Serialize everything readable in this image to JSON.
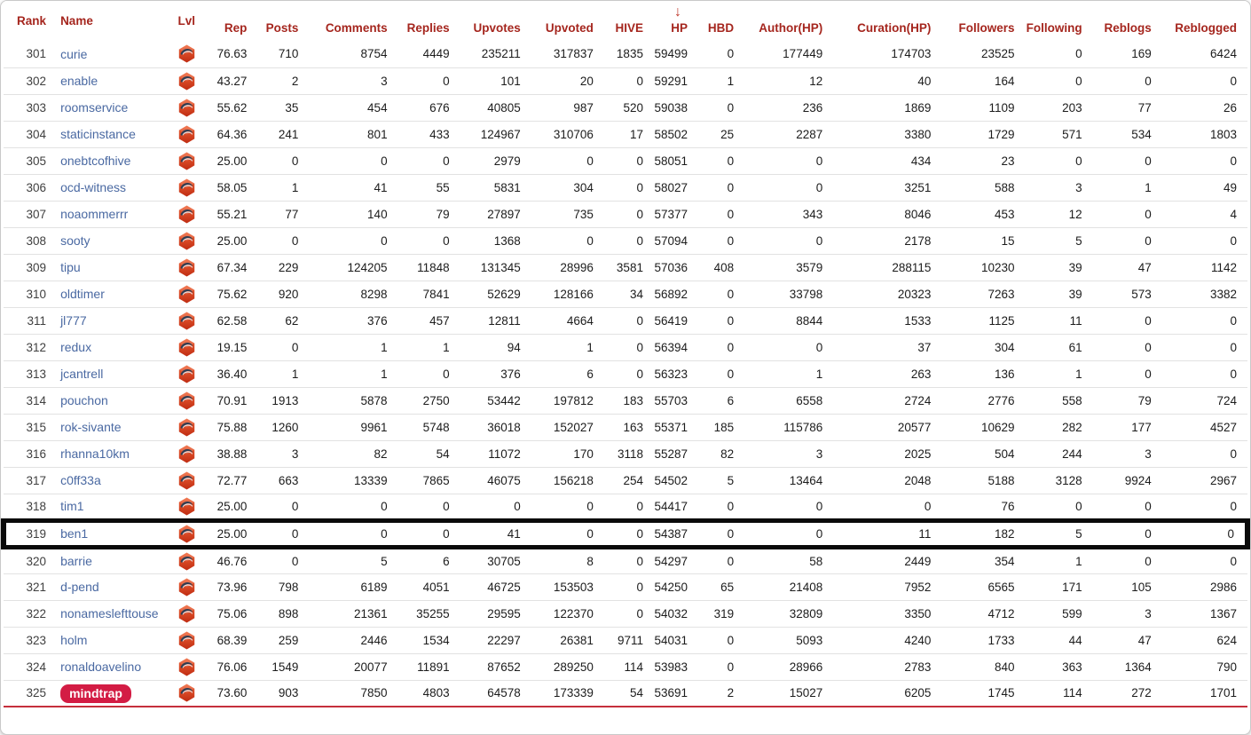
{
  "colors": {
    "header_text": "#a5261e",
    "sort_arrow": "#c0392b",
    "name_link": "#4a69a2",
    "badge_background": "#d31c44",
    "badge_text": "#ffffff",
    "highlight_border": "#0a0a0a",
    "bottom_rule": "#c5303c",
    "row_divider": "#e2e2e2",
    "level_icon": "#d8411f"
  },
  "table": {
    "columns": [
      {
        "key": "rank",
        "label": "Rank",
        "align": "right"
      },
      {
        "key": "name",
        "label": "Name",
        "align": "left"
      },
      {
        "key": "lvl",
        "label": "Lvl",
        "align": "center"
      },
      {
        "key": "rep",
        "label": "Rep",
        "align": "right"
      },
      {
        "key": "posts",
        "label": "Posts",
        "align": "right"
      },
      {
        "key": "comments",
        "label": "Comments",
        "align": "right"
      },
      {
        "key": "replies",
        "label": "Replies",
        "align": "right"
      },
      {
        "key": "upvotes",
        "label": "Upvotes",
        "align": "right"
      },
      {
        "key": "upvoted",
        "label": "Upvoted",
        "align": "right"
      },
      {
        "key": "hive",
        "label": "HIVE",
        "align": "right"
      },
      {
        "key": "hp",
        "label": "HP",
        "align": "right"
      },
      {
        "key": "hbd",
        "label": "HBD",
        "align": "right"
      },
      {
        "key": "author_hp",
        "label": "Author(HP)",
        "align": "right"
      },
      {
        "key": "curation_hp",
        "label": "Curation(HP)",
        "align": "right"
      },
      {
        "key": "followers",
        "label": "Followers",
        "align": "right"
      },
      {
        "key": "following",
        "label": "Following",
        "align": "right"
      },
      {
        "key": "reblogs",
        "label": "Reblogs",
        "align": "right"
      },
      {
        "key": "reblogged",
        "label": "Reblogged",
        "align": "right"
      }
    ],
    "sort": {
      "column": "hp",
      "direction": "descending",
      "arrow_glyph": "↓"
    },
    "highlighted_rank": 319,
    "level_icon_name": "dolphin-level-icon",
    "rows": [
      {
        "rank": 301,
        "name": "curie",
        "rep": "76.63",
        "posts": 710,
        "comments": 8754,
        "replies": 4449,
        "upvotes": 235211,
        "upvoted": 317837,
        "hive": 1835,
        "hp": 59499,
        "hbd": 0,
        "author_hp": 177449,
        "curation_hp": 174703,
        "followers": 23525,
        "following": 0,
        "reblogs": 169,
        "reblogged": 6424
      },
      {
        "rank": 302,
        "name": "enable",
        "rep": "43.27",
        "posts": 2,
        "comments": 3,
        "replies": 0,
        "upvotes": 101,
        "upvoted": 20,
        "hive": 0,
        "hp": 59291,
        "hbd": 1,
        "author_hp": 12,
        "curation_hp": 40,
        "followers": 164,
        "following": 0,
        "reblogs": 0,
        "reblogged": 0
      },
      {
        "rank": 303,
        "name": "roomservice",
        "rep": "55.62",
        "posts": 35,
        "comments": 454,
        "replies": 676,
        "upvotes": 40805,
        "upvoted": 987,
        "hive": 520,
        "hp": 59038,
        "hbd": 0,
        "author_hp": 236,
        "curation_hp": 1869,
        "followers": 1109,
        "following": 203,
        "reblogs": 77,
        "reblogged": 26
      },
      {
        "rank": 304,
        "name": "staticinstance",
        "rep": "64.36",
        "posts": 241,
        "comments": 801,
        "replies": 433,
        "upvotes": 124967,
        "upvoted": 310706,
        "hive": 17,
        "hp": 58502,
        "hbd": 25,
        "author_hp": 2287,
        "curation_hp": 3380,
        "followers": 1729,
        "following": 571,
        "reblogs": 534,
        "reblogged": 1803
      },
      {
        "rank": 305,
        "name": "onebtcofhive",
        "rep": "25.00",
        "posts": 0,
        "comments": 0,
        "replies": 0,
        "upvotes": 2979,
        "upvoted": 0,
        "hive": 0,
        "hp": 58051,
        "hbd": 0,
        "author_hp": 0,
        "curation_hp": 434,
        "followers": 23,
        "following": 0,
        "reblogs": 0,
        "reblogged": 0
      },
      {
        "rank": 306,
        "name": "ocd-witness",
        "rep": "58.05",
        "posts": 1,
        "comments": 41,
        "replies": 55,
        "upvotes": 5831,
        "upvoted": 304,
        "hive": 0,
        "hp": 58027,
        "hbd": 0,
        "author_hp": 0,
        "curation_hp": 3251,
        "followers": 588,
        "following": 3,
        "reblogs": 1,
        "reblogged": 49
      },
      {
        "rank": 307,
        "name": "noaommerrr",
        "rep": "55.21",
        "posts": 77,
        "comments": 140,
        "replies": 79,
        "upvotes": 27897,
        "upvoted": 735,
        "hive": 0,
        "hp": 57377,
        "hbd": 0,
        "author_hp": 343,
        "curation_hp": 8046,
        "followers": 453,
        "following": 12,
        "reblogs": 0,
        "reblogged": 4
      },
      {
        "rank": 308,
        "name": "sooty",
        "rep": "25.00",
        "posts": 0,
        "comments": 0,
        "replies": 0,
        "upvotes": 1368,
        "upvoted": 0,
        "hive": 0,
        "hp": 57094,
        "hbd": 0,
        "author_hp": 0,
        "curation_hp": 2178,
        "followers": 15,
        "following": 5,
        "reblogs": 0,
        "reblogged": 0
      },
      {
        "rank": 309,
        "name": "tipu",
        "rep": "67.34",
        "posts": 229,
        "comments": 124205,
        "replies": 11848,
        "upvotes": 131345,
        "upvoted": 28996,
        "hive": 3581,
        "hp": 57036,
        "hbd": 408,
        "author_hp": 3579,
        "curation_hp": 288115,
        "followers": 10230,
        "following": 39,
        "reblogs": 47,
        "reblogged": 1142
      },
      {
        "rank": 310,
        "name": "oldtimer",
        "rep": "75.62",
        "posts": 920,
        "comments": 8298,
        "replies": 7841,
        "upvotes": 52629,
        "upvoted": 128166,
        "hive": 34,
        "hp": 56892,
        "hbd": 0,
        "author_hp": 33798,
        "curation_hp": 20323,
        "followers": 7263,
        "following": 39,
        "reblogs": 573,
        "reblogged": 3382
      },
      {
        "rank": 311,
        "name": "jl777",
        "rep": "62.58",
        "posts": 62,
        "comments": 376,
        "replies": 457,
        "upvotes": 12811,
        "upvoted": 4664,
        "hive": 0,
        "hp": 56419,
        "hbd": 0,
        "author_hp": 8844,
        "curation_hp": 1533,
        "followers": 1125,
        "following": 11,
        "reblogs": 0,
        "reblogged": 0
      },
      {
        "rank": 312,
        "name": "redux",
        "rep": "19.15",
        "posts": 0,
        "comments": 1,
        "replies": 1,
        "upvotes": 94,
        "upvoted": 1,
        "hive": 0,
        "hp": 56394,
        "hbd": 0,
        "author_hp": 0,
        "curation_hp": 37,
        "followers": 304,
        "following": 61,
        "reblogs": 0,
        "reblogged": 0
      },
      {
        "rank": 313,
        "name": "jcantrell",
        "rep": "36.40",
        "posts": 1,
        "comments": 1,
        "replies": 0,
        "upvotes": 376,
        "upvoted": 6,
        "hive": 0,
        "hp": 56323,
        "hbd": 0,
        "author_hp": 1,
        "curation_hp": 263,
        "followers": 136,
        "following": 1,
        "reblogs": 0,
        "reblogged": 0
      },
      {
        "rank": 314,
        "name": "pouchon",
        "rep": "70.91",
        "posts": 1913,
        "comments": 5878,
        "replies": 2750,
        "upvotes": 53442,
        "upvoted": 197812,
        "hive": 183,
        "hp": 55703,
        "hbd": 6,
        "author_hp": 6558,
        "curation_hp": 2724,
        "followers": 2776,
        "following": 558,
        "reblogs": 79,
        "reblogged": 724
      },
      {
        "rank": 315,
        "name": "rok-sivante",
        "rep": "75.88",
        "posts": 1260,
        "comments": 9961,
        "replies": 5748,
        "upvotes": 36018,
        "upvoted": 152027,
        "hive": 163,
        "hp": 55371,
        "hbd": 185,
        "author_hp": 115786,
        "curation_hp": 20577,
        "followers": 10629,
        "following": 282,
        "reblogs": 177,
        "reblogged": 4527
      },
      {
        "rank": 316,
        "name": "rhanna10km",
        "rep": "38.88",
        "posts": 3,
        "comments": 82,
        "replies": 54,
        "upvotes": 11072,
        "upvoted": 170,
        "hive": 3118,
        "hp": 55287,
        "hbd": 82,
        "author_hp": 3,
        "curation_hp": 2025,
        "followers": 504,
        "following": 244,
        "reblogs": 3,
        "reblogged": 0
      },
      {
        "rank": 317,
        "name": "c0ff33a",
        "rep": "72.77",
        "posts": 663,
        "comments": 13339,
        "replies": 7865,
        "upvotes": 46075,
        "upvoted": 156218,
        "hive": 254,
        "hp": 54502,
        "hbd": 5,
        "author_hp": 13464,
        "curation_hp": 2048,
        "followers": 5188,
        "following": 3128,
        "reblogs": 9924,
        "reblogged": 2967
      },
      {
        "rank": 318,
        "name": "tim1",
        "rep": "25.00",
        "posts": 0,
        "comments": 0,
        "replies": 0,
        "upvotes": 0,
        "upvoted": 0,
        "hive": 0,
        "hp": 54417,
        "hbd": 0,
        "author_hp": 0,
        "curation_hp": 0,
        "followers": 76,
        "following": 0,
        "reblogs": 0,
        "reblogged": 0
      },
      {
        "rank": 319,
        "name": "ben1",
        "rep": "25.00",
        "posts": 0,
        "comments": 0,
        "replies": 0,
        "upvotes": 41,
        "upvoted": 0,
        "hive": 0,
        "hp": 54387,
        "hbd": 0,
        "author_hp": 0,
        "curation_hp": 11,
        "followers": 182,
        "following": 5,
        "reblogs": 0,
        "reblogged": 0
      },
      {
        "rank": 320,
        "name": "barrie",
        "rep": "46.76",
        "posts": 0,
        "comments": 5,
        "replies": 6,
        "upvotes": 30705,
        "upvoted": 8,
        "hive": 0,
        "hp": 54297,
        "hbd": 0,
        "author_hp": 58,
        "curation_hp": 2449,
        "followers": 354,
        "following": 1,
        "reblogs": 0,
        "reblogged": 0
      },
      {
        "rank": 321,
        "name": "d-pend",
        "rep": "73.96",
        "posts": 798,
        "comments": 6189,
        "replies": 4051,
        "upvotes": 46725,
        "upvoted": 153503,
        "hive": 0,
        "hp": 54250,
        "hbd": 65,
        "author_hp": 21408,
        "curation_hp": 7952,
        "followers": 6565,
        "following": 171,
        "reblogs": 105,
        "reblogged": 2986
      },
      {
        "rank": 322,
        "name": "nonameslefttouse",
        "rep": "75.06",
        "posts": 898,
        "comments": 21361,
        "replies": 35255,
        "upvotes": 29595,
        "upvoted": 122370,
        "hive": 0,
        "hp": 54032,
        "hbd": 319,
        "author_hp": 32809,
        "curation_hp": 3350,
        "followers": 4712,
        "following": 599,
        "reblogs": 3,
        "reblogged": 1367
      },
      {
        "rank": 323,
        "name": "holm",
        "rep": "68.39",
        "posts": 259,
        "comments": 2446,
        "replies": 1534,
        "upvotes": 22297,
        "upvoted": 26381,
        "hive": 9711,
        "hp": 54031,
        "hbd": 0,
        "author_hp": 5093,
        "curation_hp": 4240,
        "followers": 1733,
        "following": 44,
        "reblogs": 47,
        "reblogged": 624
      },
      {
        "rank": 324,
        "name": "ronaldoavelino",
        "rep": "76.06",
        "posts": 1549,
        "comments": 20077,
        "replies": 11891,
        "upvotes": 87652,
        "upvoted": 289250,
        "hive": 114,
        "hp": 53983,
        "hbd": 0,
        "author_hp": 28966,
        "curation_hp": 2783,
        "followers": 840,
        "following": 363,
        "reblogs": 1364,
        "reblogged": 790
      },
      {
        "rank": 325,
        "name": "mindtrap",
        "badge": true,
        "rep": "73.60",
        "posts": 903,
        "comments": 7850,
        "replies": 4803,
        "upvotes": 64578,
        "upvoted": 173339,
        "hive": 54,
        "hp": 53691,
        "hbd": 2,
        "author_hp": 15027,
        "curation_hp": 6205,
        "followers": 1745,
        "following": 114,
        "reblogs": 272,
        "reblogged": 1701
      }
    ]
  }
}
